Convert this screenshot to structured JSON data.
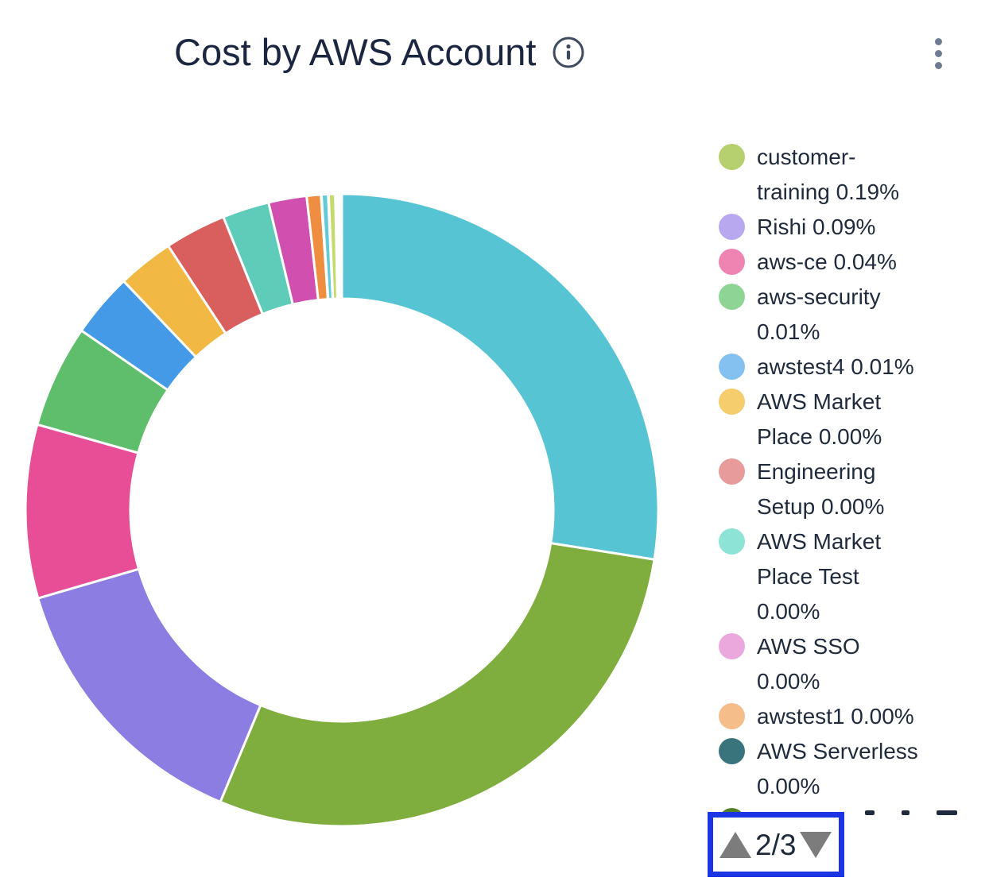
{
  "header": {
    "title": "Cost by AWS Account",
    "info_icon": "info-circle",
    "menu_icon": "kebab-vertical",
    "title_color": "#1b2740",
    "icon_color": "#3e4a5f",
    "menu_icon_color": "#6e7c93"
  },
  "chart_data": {
    "type": "pie",
    "subtype": "donut",
    "title": "Cost by AWS Account",
    "legend_position": "right",
    "inner_radius_ratio": 0.668,
    "segments": [
      {
        "color": "#57c4d4",
        "start_deg": 0,
        "end_deg": 99,
        "arc_percent": 27.5
      },
      {
        "color": "#7fad3e",
        "start_deg": 99,
        "end_deg": 202.6,
        "arc_percent": 28.8
      },
      {
        "color": "#8b7de2",
        "start_deg": 202.6,
        "end_deg": 253.8,
        "arc_percent": 14.2
      },
      {
        "color": "#e84e95",
        "start_deg": 253.8,
        "end_deg": 285.7,
        "arc_percent": 8.9
      },
      {
        "color": "#5fbe6b",
        "start_deg": 285.7,
        "end_deg": 304.6,
        "arc_percent": 5.2
      },
      {
        "color": "#459ae8",
        "start_deg": 304.6,
        "end_deg": 316.4,
        "arc_percent": 3.3
      },
      {
        "color": "#f2b844",
        "start_deg": 316.4,
        "end_deg": 326.7,
        "arc_percent": 2.9
      },
      {
        "color": "#d95f5f",
        "start_deg": 326.7,
        "end_deg": 338.0,
        "arc_percent": 3.1
      },
      {
        "color": "#5fccba",
        "start_deg": 338.0,
        "end_deg": 346.6,
        "arc_percent": 2.4
      },
      {
        "color": "#d14fae",
        "start_deg": 346.6,
        "end_deg": 353.6,
        "arc_percent": 1.9
      },
      {
        "color": "#ef8e41",
        "start_deg": 353.6,
        "end_deg": 356.2,
        "arc_percent": 0.7
      },
      {
        "color": "#63cbd8",
        "start_deg": 356.3,
        "end_deg": 357.5,
        "arc_percent": 0.33
      },
      {
        "color": "#c6d96a",
        "start_deg": 357.6,
        "end_deg": 358.8,
        "arc_percent": 0.33
      }
    ]
  },
  "legend": {
    "items": [
      {
        "label": "customer-training",
        "percent": "0.19%",
        "color": "#b6cf6f",
        "lines": [
          "customer-",
          "training 0.19%"
        ]
      },
      {
        "label": "Rishi",
        "percent": "0.09%",
        "color": "#b7a8f0",
        "lines": [
          "Rishi 0.09%"
        ]
      },
      {
        "label": "aws-ce",
        "percent": "0.04%",
        "color": "#ef84b2",
        "lines": [
          "aws-ce 0.04%"
        ]
      },
      {
        "label": "aws-security",
        "percent": "0.01%",
        "color": "#8ed595",
        "lines": [
          "aws-security",
          "0.01%"
        ]
      },
      {
        "label": "awstest4",
        "percent": "0.01%",
        "color": "#84c1f0",
        "lines": [
          "awstest4 0.01%"
        ]
      },
      {
        "label": "AWS Market Place",
        "percent": "0.00%",
        "color": "#f6cd6d",
        "lines": [
          "AWS Market",
          "Place 0.00%"
        ]
      },
      {
        "label": "Engineering Setup",
        "percent": "0.00%",
        "color": "#e89b9b",
        "lines": [
          "Engineering",
          "Setup 0.00%"
        ]
      },
      {
        "label": "AWS Market Place Test",
        "percent": "0.00%",
        "color": "#8ce3d6",
        "lines": [
          "AWS Market",
          "Place Test",
          "0.00%"
        ]
      },
      {
        "label": "AWS SSO",
        "percent": "0.00%",
        "color": "#eba8dd",
        "lines": [
          "AWS SSO",
          "0.00%"
        ]
      },
      {
        "label": "awstest1",
        "percent": "0.00%",
        "color": "#f5bd8a",
        "lines": [
          "awstest1 0.00%"
        ]
      },
      {
        "label": "AWS Serverless",
        "percent": "0.00%",
        "color": "#39747d",
        "lines": [
          "AWS Serverless",
          "0.00%"
        ]
      },
      {
        "label": "",
        "clipped": true,
        "color": "#568024",
        "lines": []
      }
    ]
  },
  "pagination": {
    "label": "2/3",
    "current_page": 2,
    "total_pages": 3,
    "arrow_color": "#7c7c7c",
    "highlight_border_color": "#1b35e5"
  }
}
